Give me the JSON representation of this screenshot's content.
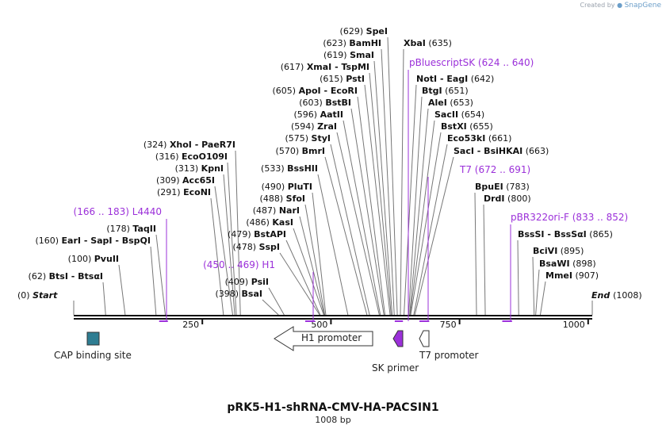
{
  "brand": {
    "created_by": "Created by",
    "name": "SnapGene"
  },
  "title": "pRK5-H1-shRNA-CMV-HA-PACSIN1",
  "length_label": "1008 bp",
  "ends": {
    "start_label": "Start",
    "start_pos": "(0)",
    "end_label": "End",
    "end_pos": "(1008)"
  },
  "ticks": [
    "250",
    "500",
    "750",
    "1000"
  ],
  "sites": [
    {
      "pos": "(62)",
      "names": [
        "BtsI",
        "BtsαI"
      ]
    },
    {
      "pos": "(100)",
      "names": [
        "PvuII"
      ]
    },
    {
      "pos": "(160)",
      "names": [
        "EarI",
        "SapI",
        "BspQI"
      ]
    },
    {
      "pos": "(178)",
      "names": [
        "TaqII"
      ]
    },
    {
      "pos": "(291)",
      "names": [
        "EcoNI"
      ]
    },
    {
      "pos": "(309)",
      "names": [
        "Acc65I"
      ]
    },
    {
      "pos": "(313)",
      "names": [
        "KpnI"
      ]
    },
    {
      "pos": "(316)",
      "names": [
        "EcoO109I"
      ]
    },
    {
      "pos": "(324)",
      "names": [
        "XhoI",
        "PaeR7I"
      ]
    },
    {
      "pos": "(398)",
      "names": [
        "BsaI"
      ]
    },
    {
      "pos": "(409)",
      "names": [
        "PsiI"
      ]
    },
    {
      "pos": "(478)",
      "names": [
        "SspI"
      ]
    },
    {
      "pos": "(479)",
      "names": [
        "BstAPI"
      ]
    },
    {
      "pos": "(486)",
      "names": [
        "KasI"
      ]
    },
    {
      "pos": "(487)",
      "names": [
        "NarI"
      ]
    },
    {
      "pos": "(488)",
      "names": [
        "SfoI"
      ]
    },
    {
      "pos": "(490)",
      "names": [
        "PluTI"
      ]
    },
    {
      "pos": "(533)",
      "names": [
        "BssHII"
      ]
    },
    {
      "pos": "(570)",
      "names": [
        "BmrI"
      ]
    },
    {
      "pos": "(575)",
      "names": [
        "StyI"
      ]
    },
    {
      "pos": "(594)",
      "names": [
        "ZraI"
      ]
    },
    {
      "pos": "(596)",
      "names": [
        "AatII"
      ]
    },
    {
      "pos": "(603)",
      "names": [
        "BstBI"
      ]
    },
    {
      "pos": "(605)",
      "names": [
        "ApoI",
        "EcoRI"
      ]
    },
    {
      "pos": "(615)",
      "names": [
        "PstI"
      ]
    },
    {
      "pos": "(617)",
      "names": [
        "XmaI",
        "TspMI"
      ]
    },
    {
      "pos": "(619)",
      "names": [
        "SmaI"
      ]
    },
    {
      "pos": "(623)",
      "names": [
        "BamHI"
      ]
    },
    {
      "pos": "(629)",
      "names": [
        "SpeI"
      ]
    },
    {
      "pos": "(635)",
      "names": [
        "XbaI"
      ]
    },
    {
      "pos": "(642)",
      "names": [
        "NotI",
        "EagI"
      ]
    },
    {
      "pos": "(651)",
      "names": [
        "BtgI"
      ]
    },
    {
      "pos": "(653)",
      "names": [
        "AleI"
      ]
    },
    {
      "pos": "(654)",
      "names": [
        "SacII"
      ]
    },
    {
      "pos": "(655)",
      "names": [
        "BstXI"
      ]
    },
    {
      "pos": "(661)",
      "names": [
        "Eco53kI"
      ]
    },
    {
      "pos": "(663)",
      "names": [
        "SacI",
        "BsiHKAI"
      ]
    },
    {
      "pos": "(783)",
      "names": [
        "BpuEI"
      ]
    },
    {
      "pos": "(800)",
      "names": [
        "DrdI"
      ]
    },
    {
      "pos": "(865)",
      "names": [
        "BssSI",
        "BssSαI"
      ]
    },
    {
      "pos": "(895)",
      "names": [
        "BciVI"
      ]
    },
    {
      "pos": "(898)",
      "names": [
        "BsaWI"
      ]
    },
    {
      "pos": "(907)",
      "names": [
        "MmeI"
      ]
    }
  ],
  "primers": [
    {
      "name": "L4440",
      "range": "(166 .. 183)"
    },
    {
      "name": "H1",
      "range": "(450 .. 469)"
    },
    {
      "name": "pBluescriptSK",
      "range": "(624 .. 640)"
    },
    {
      "name": "T7",
      "range": "(672 .. 691)"
    },
    {
      "name": "pBR322ori-F",
      "range": "(833 .. 852)"
    }
  ],
  "features": [
    {
      "name": "CAP binding site",
      "color": "#2e7d92"
    },
    {
      "name": "H1 promoter",
      "color": "#ffffff"
    },
    {
      "name": "SK primer",
      "color": "#9b30d9"
    },
    {
      "name": "T7 promoter",
      "color": "#ffffff"
    }
  ],
  "colors": {
    "primer": "#9b30d9",
    "line": "#777777",
    "text": "#111111"
  }
}
